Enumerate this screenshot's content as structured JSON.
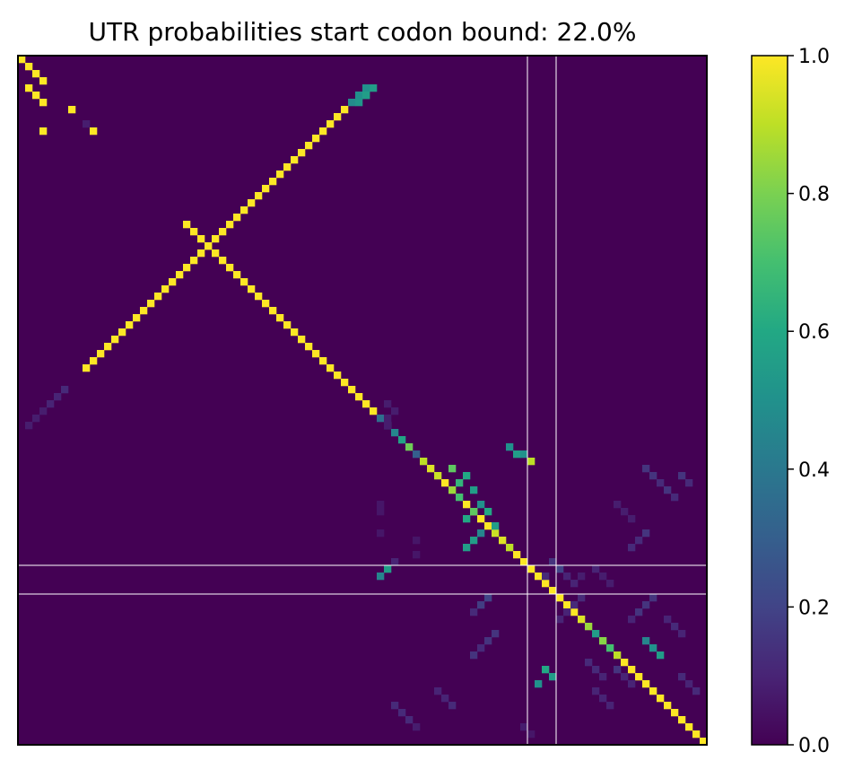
{
  "chart_data": {
    "type": "heatmap",
    "title": "UTR probabilities start codon bound: 22.0%",
    "xlabel": "",
    "ylabel": "",
    "colormap": "viridis",
    "matrix_size": 96,
    "value_range": [
      0.0,
      1.0
    ],
    "colorbar": {
      "ticks": [
        0.0,
        0.2,
        0.4,
        0.6,
        0.8,
        1.0
      ],
      "tick_labels": [
        "0.0",
        "0.2",
        "0.4",
        "0.6",
        "0.8",
        "1.0"
      ]
    },
    "start_codon_lines": [
      71,
      75
    ],
    "cells": [
      [
        0,
        0,
        1
      ],
      [
        1,
        1,
        1
      ],
      [
        2,
        2,
        1
      ],
      [
        3,
        3,
        1
      ],
      [
        7,
        7,
        1
      ],
      [
        9,
        9,
        0.08
      ],
      [
        10,
        10,
        1
      ],
      [
        23,
        23,
        1
      ],
      [
        24,
        24,
        1
      ],
      [
        25,
        25,
        1
      ],
      [
        26,
        26,
        1
      ],
      [
        27,
        27,
        1
      ],
      [
        28,
        28,
        1
      ],
      [
        29,
        29,
        1
      ],
      [
        30,
        30,
        1
      ],
      [
        31,
        31,
        1
      ],
      [
        32,
        32,
        1
      ],
      [
        33,
        33,
        1
      ],
      [
        34,
        34,
        1
      ],
      [
        35,
        35,
        1
      ],
      [
        36,
        36,
        1
      ],
      [
        37,
        37,
        1
      ],
      [
        38,
        38,
        1
      ],
      [
        39,
        39,
        1
      ],
      [
        40,
        40,
        1
      ],
      [
        41,
        41,
        1
      ],
      [
        42,
        42,
        1
      ],
      [
        43,
        43,
        1
      ],
      [
        44,
        44,
        1
      ],
      [
        45,
        45,
        1
      ],
      [
        46,
        46,
        1
      ],
      [
        47,
        47,
        1
      ],
      [
        48,
        48,
        1
      ],
      [
        49,
        49,
        1
      ],
      [
        50,
        50,
        0.36
      ],
      [
        51,
        51,
        0.42
      ],
      [
        52,
        52,
        0.46
      ],
      [
        53,
        53,
        0.58
      ],
      [
        54,
        54,
        0.78
      ],
      [
        55,
        55,
        0.3
      ],
      [
        56,
        56,
        0.9
      ],
      [
        57,
        57,
        0.95
      ],
      [
        58,
        58,
        0.92
      ],
      [
        59,
        59,
        1
      ],
      [
        60,
        60,
        0.85
      ],
      [
        61,
        61,
        0.7
      ],
      [
        62,
        62,
        1
      ],
      [
        63,
        63,
        1
      ],
      [
        64,
        64,
        1
      ],
      [
        65,
        65,
        1
      ],
      [
        66,
        66,
        0.92
      ],
      [
        67,
        67,
        0.95
      ],
      [
        68,
        68,
        0.9
      ],
      [
        69,
        69,
        1
      ],
      [
        70,
        70,
        1
      ],
      [
        71,
        71,
        1
      ],
      [
        72,
        72,
        1
      ],
      [
        73,
        73,
        1
      ],
      [
        74,
        74,
        1
      ],
      [
        75,
        75,
        1
      ],
      [
        76,
        76,
        1
      ],
      [
        77,
        77,
        1
      ],
      [
        78,
        78,
        0.95
      ],
      [
        79,
        79,
        0.85
      ],
      [
        80,
        80,
        0.55
      ],
      [
        81,
        81,
        0.82
      ],
      [
        82,
        82,
        0.7
      ],
      [
        83,
        83,
        0.9
      ],
      [
        84,
        84,
        1
      ],
      [
        85,
        85,
        1
      ],
      [
        86,
        86,
        1
      ],
      [
        87,
        87,
        1
      ],
      [
        88,
        88,
        1
      ],
      [
        89,
        89,
        1
      ],
      [
        90,
        90,
        1
      ],
      [
        91,
        91,
        1
      ],
      [
        92,
        92,
        1
      ],
      [
        93,
        93,
        1
      ],
      [
        94,
        94,
        1
      ],
      [
        95,
        95,
        1
      ],
      [
        4,
        1,
        1
      ],
      [
        5,
        2,
        1
      ],
      [
        6,
        3,
        1
      ],
      [
        10,
        3,
        1
      ],
      [
        4,
        48,
        0.5
      ],
      [
        4,
        49,
        0.55
      ],
      [
        5,
        47,
        0.55
      ],
      [
        5,
        48,
        0.6
      ],
      [
        6,
        46,
        0.48
      ],
      [
        6,
        47,
        0.52
      ],
      [
        7,
        45,
        1
      ],
      [
        8,
        44,
        1
      ],
      [
        9,
        43,
        1
      ],
      [
        10,
        42,
        1
      ],
      [
        11,
        41,
        1
      ],
      [
        12,
        40,
        1
      ],
      [
        13,
        39,
        1
      ],
      [
        14,
        38,
        1
      ],
      [
        15,
        37,
        1
      ],
      [
        16,
        36,
        1
      ],
      [
        17,
        35,
        1
      ],
      [
        18,
        34,
        1
      ],
      [
        19,
        33,
        1
      ],
      [
        20,
        32,
        1
      ],
      [
        21,
        31,
        1
      ],
      [
        22,
        30,
        1
      ],
      [
        23,
        29,
        1
      ],
      [
        24,
        28,
        1
      ],
      [
        25,
        27,
        1
      ],
      [
        26,
        26,
        1
      ],
      [
        27,
        25,
        1
      ],
      [
        28,
        24,
        1
      ],
      [
        29,
        23,
        1
      ],
      [
        30,
        22,
        1
      ],
      [
        31,
        21,
        1
      ],
      [
        32,
        20,
        1
      ],
      [
        33,
        19,
        1
      ],
      [
        34,
        18,
        1
      ],
      [
        35,
        17,
        1
      ],
      [
        36,
        16,
        1
      ],
      [
        37,
        15,
        1
      ],
      [
        38,
        14,
        1
      ],
      [
        39,
        13,
        1
      ],
      [
        40,
        12,
        1
      ],
      [
        41,
        11,
        1
      ],
      [
        42,
        10,
        1
      ],
      [
        43,
        9,
        1
      ],
      [
        4,
        48,
        0.5
      ],
      [
        5,
        47,
        0.5
      ],
      [
        5,
        48,
        0.55
      ],
      [
        46,
        6,
        0.12
      ],
      [
        47,
        5,
        0.1
      ],
      [
        48,
        4,
        0.1
      ],
      [
        49,
        3,
        0.08
      ],
      [
        50,
        2,
        0.08
      ],
      [
        51,
        1,
        0.08
      ],
      [
        48,
        51,
        0.08
      ],
      [
        50,
        51,
        0.08
      ],
      [
        49,
        52,
        0.08
      ],
      [
        51,
        51,
        0.08
      ],
      [
        54,
        68,
        0.5
      ],
      [
        55,
        69,
        0.55
      ],
      [
        55,
        70,
        0.5
      ],
      [
        56,
        71,
        0.9
      ],
      [
        57,
        60,
        0.75
      ],
      [
        59,
        61,
        0.65
      ],
      [
        58,
        62,
        0.6
      ],
      [
        60,
        63,
        0.55
      ],
      [
        62,
        64,
        0.5
      ],
      [
        63,
        65,
        0.6
      ],
      [
        64,
        62,
        0.6
      ],
      [
        63,
        63,
        0.75
      ],
      [
        65,
        66,
        0.55
      ],
      [
        66,
        64,
        0.45
      ],
      [
        67,
        63,
        0.55
      ],
      [
        68,
        62,
        0.55
      ],
      [
        71,
        51,
        0.55
      ],
      [
        72,
        50,
        0.45
      ],
      [
        70,
        52,
        0.1
      ],
      [
        62,
        50,
        0.06
      ],
      [
        63,
        50,
        0.06
      ],
      [
        66,
        50,
        0.06
      ],
      [
        67,
        55,
        0.06
      ],
      [
        69,
        55,
        0.06
      ],
      [
        70,
        74,
        0.15
      ],
      [
        71,
        75,
        0.2
      ],
      [
        72,
        73,
        0.12
      ],
      [
        72,
        76,
        0.1
      ],
      [
        73,
        77,
        0.1
      ],
      [
        72,
        78,
        0.08
      ],
      [
        75,
        65,
        0.2
      ],
      [
        76,
        64,
        0.18
      ],
      [
        77,
        63,
        0.12
      ],
      [
        80,
        66,
        0.15
      ],
      [
        81,
        65,
        0.15
      ],
      [
        82,
        64,
        0.12
      ],
      [
        83,
        63,
        0.15
      ],
      [
        85,
        73,
        0.6
      ],
      [
        86,
        74,
        0.55
      ],
      [
        87,
        72,
        0.5
      ],
      [
        75,
        78,
        0.12
      ],
      [
        76,
        77,
        0.12
      ],
      [
        77,
        76,
        0.1
      ],
      [
        78,
        75,
        0.1
      ],
      [
        75,
        88,
        0.15
      ],
      [
        76,
        87,
        0.15
      ],
      [
        77,
        86,
        0.15
      ],
      [
        78,
        85,
        0.1
      ],
      [
        81,
        87,
        0.45
      ],
      [
        82,
        88,
        0.5
      ],
      [
        83,
        89,
        0.55
      ],
      [
        85,
        83,
        0.15
      ],
      [
        86,
        84,
        0.1
      ],
      [
        87,
        85,
        0.1
      ],
      [
        84,
        79,
        0.12
      ],
      [
        85,
        80,
        0.12
      ],
      [
        86,
        81,
        0.1
      ],
      [
        88,
        80,
        0.1
      ],
      [
        89,
        81,
        0.1
      ],
      [
        90,
        82,
        0.1
      ],
      [
        90,
        52,
        0.12
      ],
      [
        91,
        53,
        0.12
      ],
      [
        92,
        54,
        0.12
      ],
      [
        93,
        55,
        0.08
      ],
      [
        88,
        58,
        0.1
      ],
      [
        89,
        59,
        0.1
      ],
      [
        90,
        60,
        0.12
      ],
      [
        93,
        70,
        0.08
      ],
      [
        94,
        71,
        0.06
      ],
      [
        57,
        87,
        0.15
      ],
      [
        58,
        88,
        0.15
      ],
      [
        59,
        89,
        0.12
      ],
      [
        60,
        90,
        0.15
      ],
      [
        61,
        91,
        0.12
      ],
      [
        58,
        92,
        0.15
      ],
      [
        59,
        93,
        0.12
      ],
      [
        62,
        83,
        0.08
      ],
      [
        63,
        84,
        0.08
      ],
      [
        64,
        85,
        0.08
      ],
      [
        66,
        87,
        0.15
      ],
      [
        67,
        86,
        0.12
      ],
      [
        68,
        85,
        0.12
      ],
      [
        71,
        80,
        0.1
      ],
      [
        72,
        81,
        0.08
      ],
      [
        73,
        82,
        0.08
      ],
      [
        78,
        90,
        0.1
      ],
      [
        79,
        91,
        0.12
      ],
      [
        80,
        92,
        0.1
      ],
      [
        86,
        92,
        0.12
      ],
      [
        87,
        93,
        0.1
      ],
      [
        88,
        94,
        0.12
      ]
    ]
  }
}
